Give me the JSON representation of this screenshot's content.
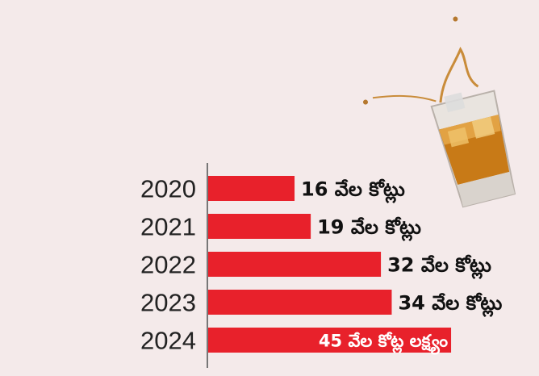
{
  "chart_data": {
    "type": "barh",
    "categories": [
      "2020",
      "2021",
      "2022",
      "2023",
      "2024"
    ],
    "values": [
      16,
      19,
      32,
      34,
      45
    ],
    "value_labels": [
      "16 వేల కోట్లు",
      "19 వేల కోట్లు",
      "32 వేల కోట్లు",
      "34 వేల కోట్లు",
      "45 వేల కోట్ల లక్ష్యం"
    ],
    "color": "#e8212b"
  }
}
